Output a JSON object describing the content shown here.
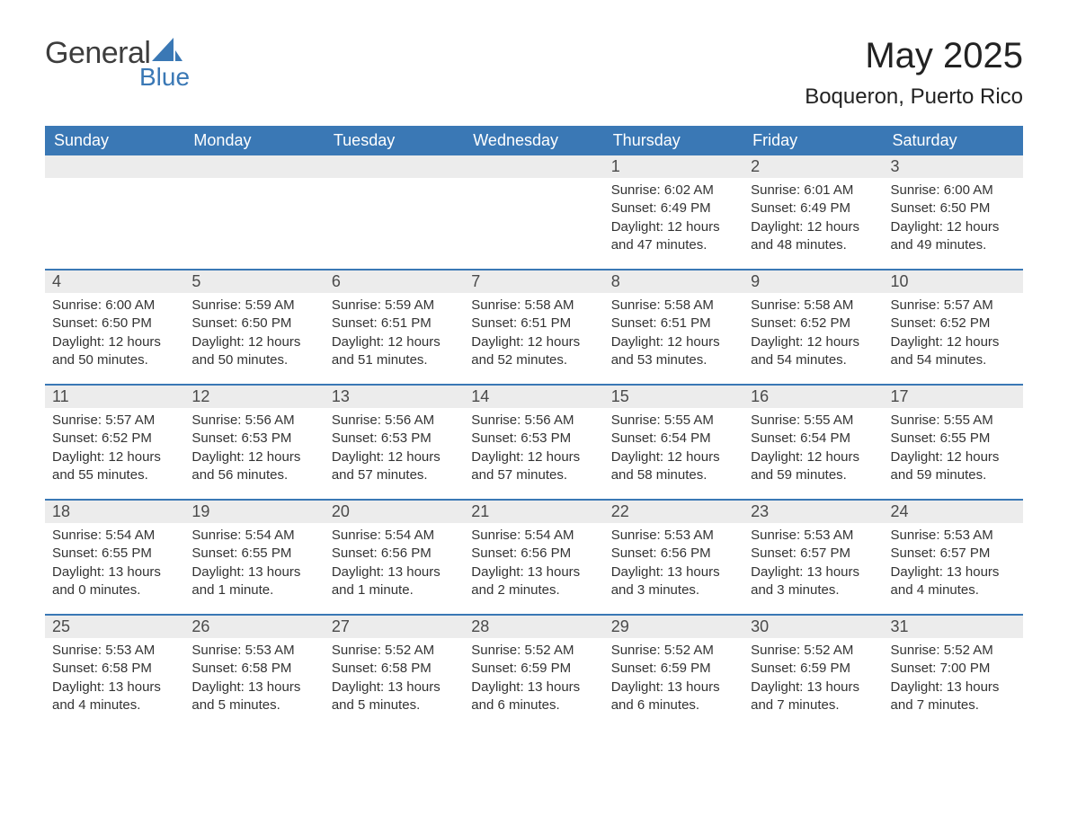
{
  "logo": {
    "text_general": "General",
    "text_blue": "Blue",
    "sail_color": "#3a78b5",
    "general_color": "#3d3d3d"
  },
  "title": {
    "month": "May 2025",
    "location": "Boqueron, Puerto Rico"
  },
  "style": {
    "header_bg": "#3a78b5",
    "header_fg": "#ffffff",
    "daynum_bg": "#ececec",
    "daynum_fg": "#4a4a4a",
    "row_separator": "#3a78b5",
    "body_text_color": "#333333",
    "month_title_fontsize": 40,
    "location_fontsize": 24,
    "header_fontsize": 18,
    "daynum_fontsize": 18,
    "body_fontsize": 15
  },
  "weekday_headers": [
    "Sunday",
    "Monday",
    "Tuesday",
    "Wednesday",
    "Thursday",
    "Friday",
    "Saturday"
  ],
  "weeks": [
    [
      {
        "empty": true
      },
      {
        "empty": true
      },
      {
        "empty": true
      },
      {
        "empty": true
      },
      {
        "num": "1",
        "sunrise": "Sunrise: 6:02 AM",
        "sunset": "Sunset: 6:49 PM",
        "daylight": "Daylight: 12 hours and 47 minutes."
      },
      {
        "num": "2",
        "sunrise": "Sunrise: 6:01 AM",
        "sunset": "Sunset: 6:49 PM",
        "daylight": "Daylight: 12 hours and 48 minutes."
      },
      {
        "num": "3",
        "sunrise": "Sunrise: 6:00 AM",
        "sunset": "Sunset: 6:50 PM",
        "daylight": "Daylight: 12 hours and 49 minutes."
      }
    ],
    [
      {
        "num": "4",
        "sunrise": "Sunrise: 6:00 AM",
        "sunset": "Sunset: 6:50 PM",
        "daylight": "Daylight: 12 hours and 50 minutes."
      },
      {
        "num": "5",
        "sunrise": "Sunrise: 5:59 AM",
        "sunset": "Sunset: 6:50 PM",
        "daylight": "Daylight: 12 hours and 50 minutes."
      },
      {
        "num": "6",
        "sunrise": "Sunrise: 5:59 AM",
        "sunset": "Sunset: 6:51 PM",
        "daylight": "Daylight: 12 hours and 51 minutes."
      },
      {
        "num": "7",
        "sunrise": "Sunrise: 5:58 AM",
        "sunset": "Sunset: 6:51 PM",
        "daylight": "Daylight: 12 hours and 52 minutes."
      },
      {
        "num": "8",
        "sunrise": "Sunrise: 5:58 AM",
        "sunset": "Sunset: 6:51 PM",
        "daylight": "Daylight: 12 hours and 53 minutes."
      },
      {
        "num": "9",
        "sunrise": "Sunrise: 5:58 AM",
        "sunset": "Sunset: 6:52 PM",
        "daylight": "Daylight: 12 hours and 54 minutes."
      },
      {
        "num": "10",
        "sunrise": "Sunrise: 5:57 AM",
        "sunset": "Sunset: 6:52 PM",
        "daylight": "Daylight: 12 hours and 54 minutes."
      }
    ],
    [
      {
        "num": "11",
        "sunrise": "Sunrise: 5:57 AM",
        "sunset": "Sunset: 6:52 PM",
        "daylight": "Daylight: 12 hours and 55 minutes."
      },
      {
        "num": "12",
        "sunrise": "Sunrise: 5:56 AM",
        "sunset": "Sunset: 6:53 PM",
        "daylight": "Daylight: 12 hours and 56 minutes."
      },
      {
        "num": "13",
        "sunrise": "Sunrise: 5:56 AM",
        "sunset": "Sunset: 6:53 PM",
        "daylight": "Daylight: 12 hours and 57 minutes."
      },
      {
        "num": "14",
        "sunrise": "Sunrise: 5:56 AM",
        "sunset": "Sunset: 6:53 PM",
        "daylight": "Daylight: 12 hours and 57 minutes."
      },
      {
        "num": "15",
        "sunrise": "Sunrise: 5:55 AM",
        "sunset": "Sunset: 6:54 PM",
        "daylight": "Daylight: 12 hours and 58 minutes."
      },
      {
        "num": "16",
        "sunrise": "Sunrise: 5:55 AM",
        "sunset": "Sunset: 6:54 PM",
        "daylight": "Daylight: 12 hours and 59 minutes."
      },
      {
        "num": "17",
        "sunrise": "Sunrise: 5:55 AM",
        "sunset": "Sunset: 6:55 PM",
        "daylight": "Daylight: 12 hours and 59 minutes."
      }
    ],
    [
      {
        "num": "18",
        "sunrise": "Sunrise: 5:54 AM",
        "sunset": "Sunset: 6:55 PM",
        "daylight": "Daylight: 13 hours and 0 minutes."
      },
      {
        "num": "19",
        "sunrise": "Sunrise: 5:54 AM",
        "sunset": "Sunset: 6:55 PM",
        "daylight": "Daylight: 13 hours and 1 minute."
      },
      {
        "num": "20",
        "sunrise": "Sunrise: 5:54 AM",
        "sunset": "Sunset: 6:56 PM",
        "daylight": "Daylight: 13 hours and 1 minute."
      },
      {
        "num": "21",
        "sunrise": "Sunrise: 5:54 AM",
        "sunset": "Sunset: 6:56 PM",
        "daylight": "Daylight: 13 hours and 2 minutes."
      },
      {
        "num": "22",
        "sunrise": "Sunrise: 5:53 AM",
        "sunset": "Sunset: 6:56 PM",
        "daylight": "Daylight: 13 hours and 3 minutes."
      },
      {
        "num": "23",
        "sunrise": "Sunrise: 5:53 AM",
        "sunset": "Sunset: 6:57 PM",
        "daylight": "Daylight: 13 hours and 3 minutes."
      },
      {
        "num": "24",
        "sunrise": "Sunrise: 5:53 AM",
        "sunset": "Sunset: 6:57 PM",
        "daylight": "Daylight: 13 hours and 4 minutes."
      }
    ],
    [
      {
        "num": "25",
        "sunrise": "Sunrise: 5:53 AM",
        "sunset": "Sunset: 6:58 PM",
        "daylight": "Daylight: 13 hours and 4 minutes."
      },
      {
        "num": "26",
        "sunrise": "Sunrise: 5:53 AM",
        "sunset": "Sunset: 6:58 PM",
        "daylight": "Daylight: 13 hours and 5 minutes."
      },
      {
        "num": "27",
        "sunrise": "Sunrise: 5:52 AM",
        "sunset": "Sunset: 6:58 PM",
        "daylight": "Daylight: 13 hours and 5 minutes."
      },
      {
        "num": "28",
        "sunrise": "Sunrise: 5:52 AM",
        "sunset": "Sunset: 6:59 PM",
        "daylight": "Daylight: 13 hours and 6 minutes."
      },
      {
        "num": "29",
        "sunrise": "Sunrise: 5:52 AM",
        "sunset": "Sunset: 6:59 PM",
        "daylight": "Daylight: 13 hours and 6 minutes."
      },
      {
        "num": "30",
        "sunrise": "Sunrise: 5:52 AM",
        "sunset": "Sunset: 6:59 PM",
        "daylight": "Daylight: 13 hours and 7 minutes."
      },
      {
        "num": "31",
        "sunrise": "Sunrise: 5:52 AM",
        "sunset": "Sunset: 7:00 PM",
        "daylight": "Daylight: 13 hours and 7 minutes."
      }
    ]
  ]
}
